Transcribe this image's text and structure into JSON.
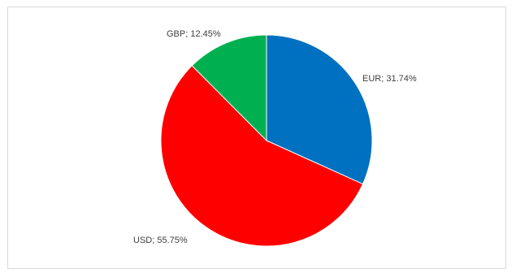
{
  "chart_data": {
    "type": "pie",
    "title": "",
    "series": [
      {
        "slices": [
          {
            "category": "EUR",
            "value": 31.74,
            "label": "EUR; 31.74%",
            "color": "#0070C0"
          },
          {
            "category": "USD",
            "value": 55.75,
            "label": "USD; 55.75%",
            "color": "#FF0000"
          },
          {
            "category": "GBP",
            "value": 12.45,
            "label": "GBP; 12.45%",
            "color": "#00B050"
          }
        ]
      }
    ],
    "legend": "none",
    "start_angle_deg": 0,
    "direction": "clockwise"
  }
}
